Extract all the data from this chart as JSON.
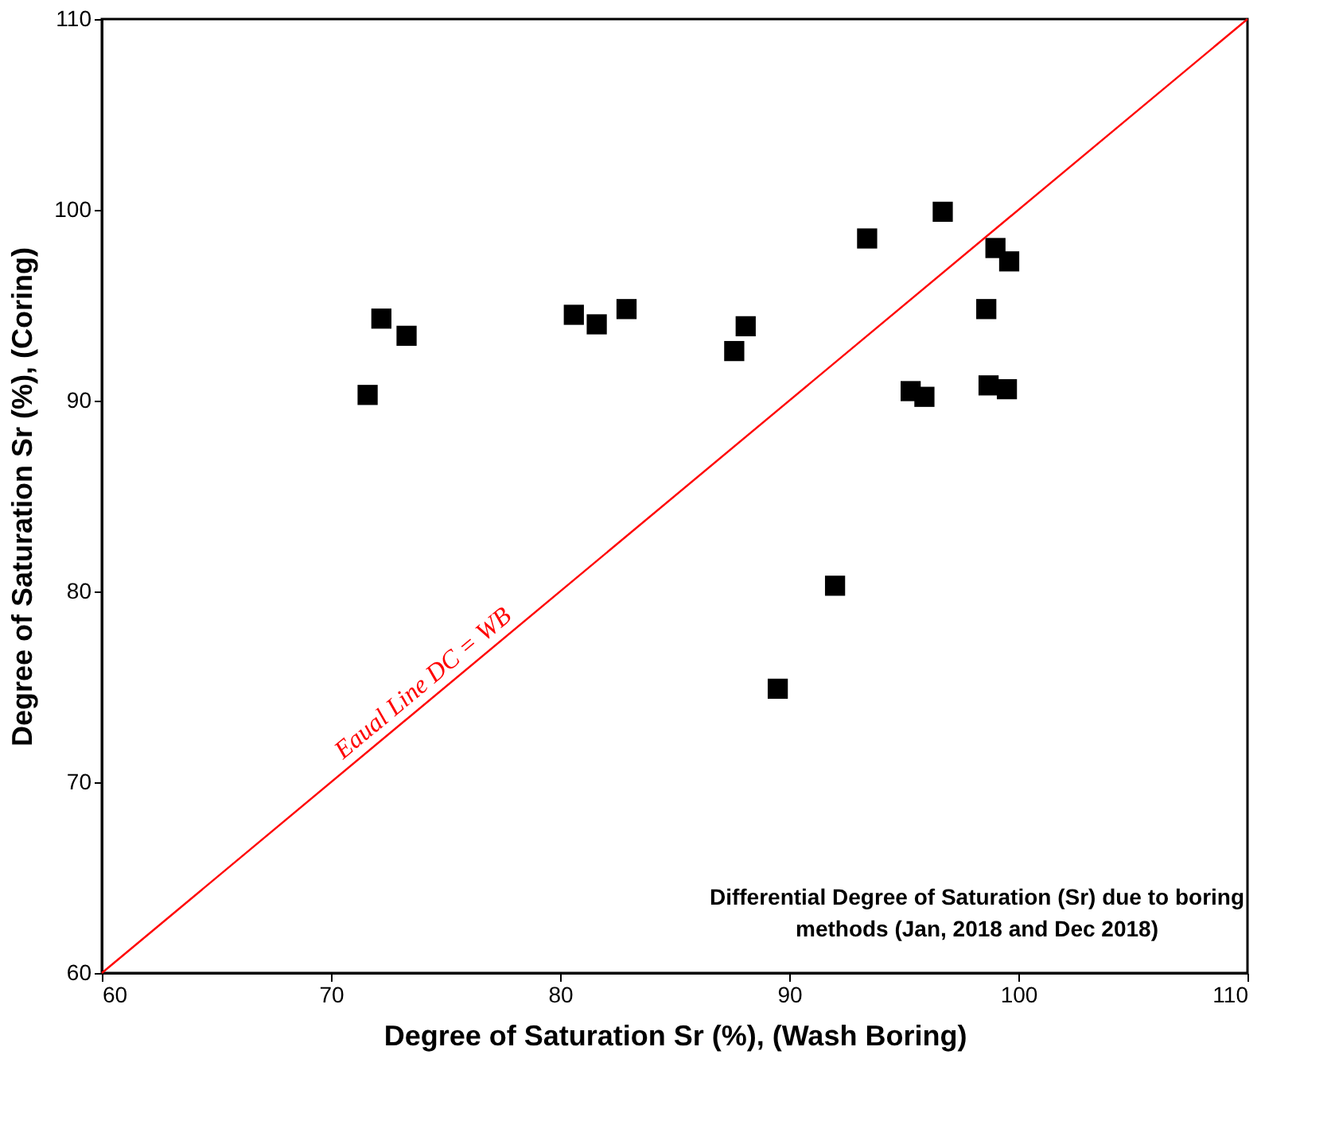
{
  "chart_data": {
    "type": "scatter",
    "xlabel": "Degree of Saturation Sr (%), (Wash Boring)",
    "ylabel": "Degree of Saturation Sr (%), (Coring)",
    "xlim": [
      60,
      110
    ],
    "ylim": [
      60,
      110
    ],
    "xticks": [
      60,
      70,
      80,
      90,
      100,
      110
    ],
    "yticks": [
      60,
      70,
      80,
      90,
      100,
      110
    ],
    "grid": false,
    "series": [
      {
        "color": "#000000",
        "marker": "square",
        "x": [
          71.6,
          72.2,
          73.3,
          80.6,
          81.6,
          82.9,
          87.6,
          88.1,
          89.5,
          92.0,
          93.4,
          95.3,
          95.9,
          96.7,
          98.6,
          98.7,
          99.0,
          99.5,
          99.6
        ],
        "values": [
          90.3,
          94.3,
          93.4,
          94.5,
          94.0,
          94.8,
          92.6,
          93.9,
          74.9,
          80.3,
          98.5,
          90.5,
          90.2,
          99.9,
          94.8,
          90.8,
          98.0,
          90.6,
          97.3
        ]
      },
      {
        "type": "line",
        "color": "#ff0000",
        "line_style": "solid",
        "marker": "none",
        "x": [
          60,
          110
        ],
        "values": [
          60,
          110
        ]
      }
    ],
    "annotations": [
      "Eaual Line DC = WB",
      "Differential Degree of Saturation (Sr) due to boring methods (Jan, 2018 and Dec 2018)"
    ]
  }
}
